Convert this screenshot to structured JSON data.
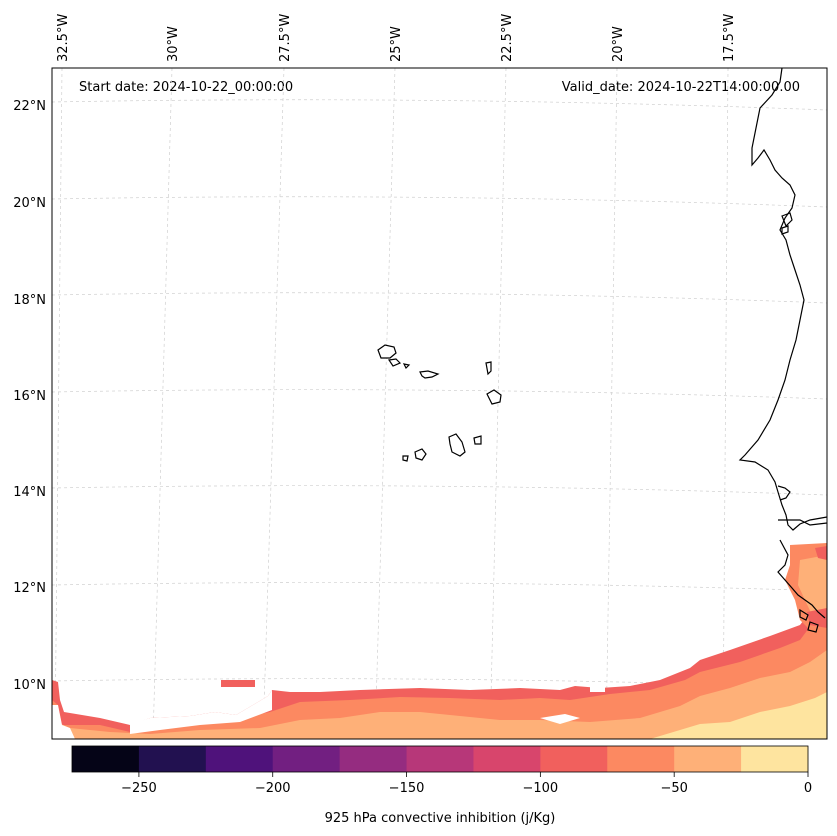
{
  "header": {
    "start_date": "Start date: 2024-10-22_00:00:00",
    "valid_date": "Valid_date: 2024-10-22T14:00:00.00"
  },
  "map": {
    "lon_labels": [
      "32.5°W",
      "30°W",
      "27.5°W",
      "25°W",
      "22.5°W",
      "20°W",
      "17.5°W"
    ],
    "lat_labels": [
      "22°N",
      "20°N",
      "18°N",
      "16°N",
      "14°N",
      "12°N",
      "10°N"
    ],
    "field": "925 hPa convective inhibition",
    "units": "j/Kg"
  },
  "colorbar": {
    "label": "925 hPa convective inhibition (j/Kg)",
    "ticks": [
      "−250",
      "−200",
      "−150",
      "−100",
      "−50",
      "0"
    ],
    "levels": [
      -275,
      -250,
      -225,
      -200,
      -175,
      -150,
      -125,
      -100,
      -75,
      -50,
      -25,
      0
    ],
    "colors": [
      "#050417",
      "#221150",
      "#4f127b",
      "#721f81",
      "#952c80",
      "#b73779",
      "#d8456c",
      "#f1605d",
      "#fc8961",
      "#feb078",
      "#fee49f"
    ]
  },
  "colors": {
    "coastline": "#000000",
    "gridline": "#cfcfcf"
  }
}
